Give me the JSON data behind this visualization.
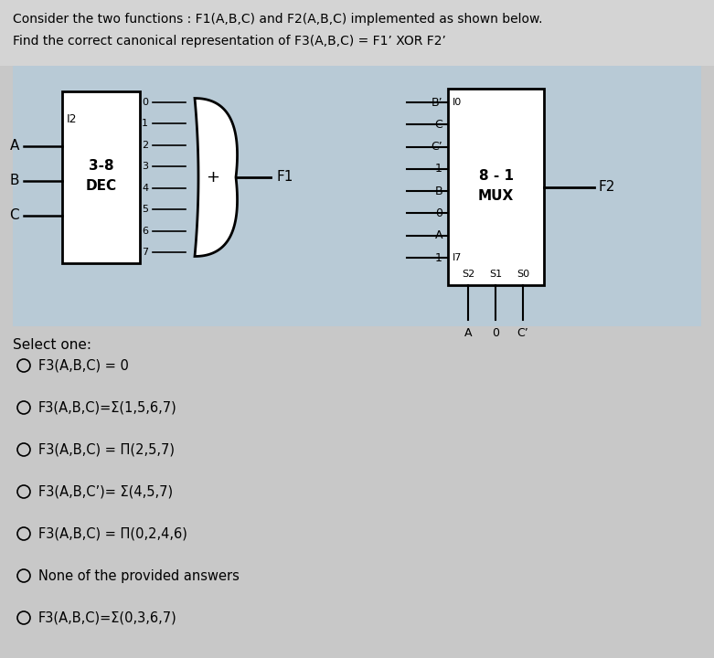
{
  "title_line1": "Consider the two functions : F1(A,B,C) and F2(A,B,C) implemented as shown below.",
  "title_line2": "Find the correct canonical representation of F3(A,B,C) = F1’ XOR F2’",
  "bg_outer": "#c8c8c8",
  "bg_diagram": "#b8ccd8",
  "bg_white": "#ffffff",
  "dec_label1": "3-8",
  "dec_label2": "DEC",
  "dec_input_label": "I2",
  "dec_inputs": [
    "A",
    "B",
    "C"
  ],
  "dec_outputs": [
    "0",
    "1",
    "2",
    "3",
    "4",
    "5",
    "6",
    "7"
  ],
  "f1_label": "F1",
  "mux_label1": "8 - 1",
  "mux_label2": "MUX",
  "f2_label": "F2",
  "mux_inputs_left": [
    "B’",
    "C",
    "C’",
    "1",
    "B",
    "0",
    "A",
    "1"
  ],
  "mux_port_top": "I0",
  "mux_port_bot": "I7",
  "mux_selects": [
    "S2",
    "S1",
    "S0"
  ],
  "mux_select_vals": [
    "A",
    "0",
    "C’"
  ],
  "select_one": "Select one:",
  "options": [
    "F3(A,B,C) = 0",
    "F3(A,B,C)=Σ(1,5,6,7)",
    "F3(A,B,C) = Π(2,5,7)",
    "F3(A,B,C’)= Σ(4,5,7)",
    "F3(A,B,C) = Π(0,2,4,6)",
    "None of the provided answers",
    "F3(A,B,C)=Σ(0,3,6,7)"
  ]
}
